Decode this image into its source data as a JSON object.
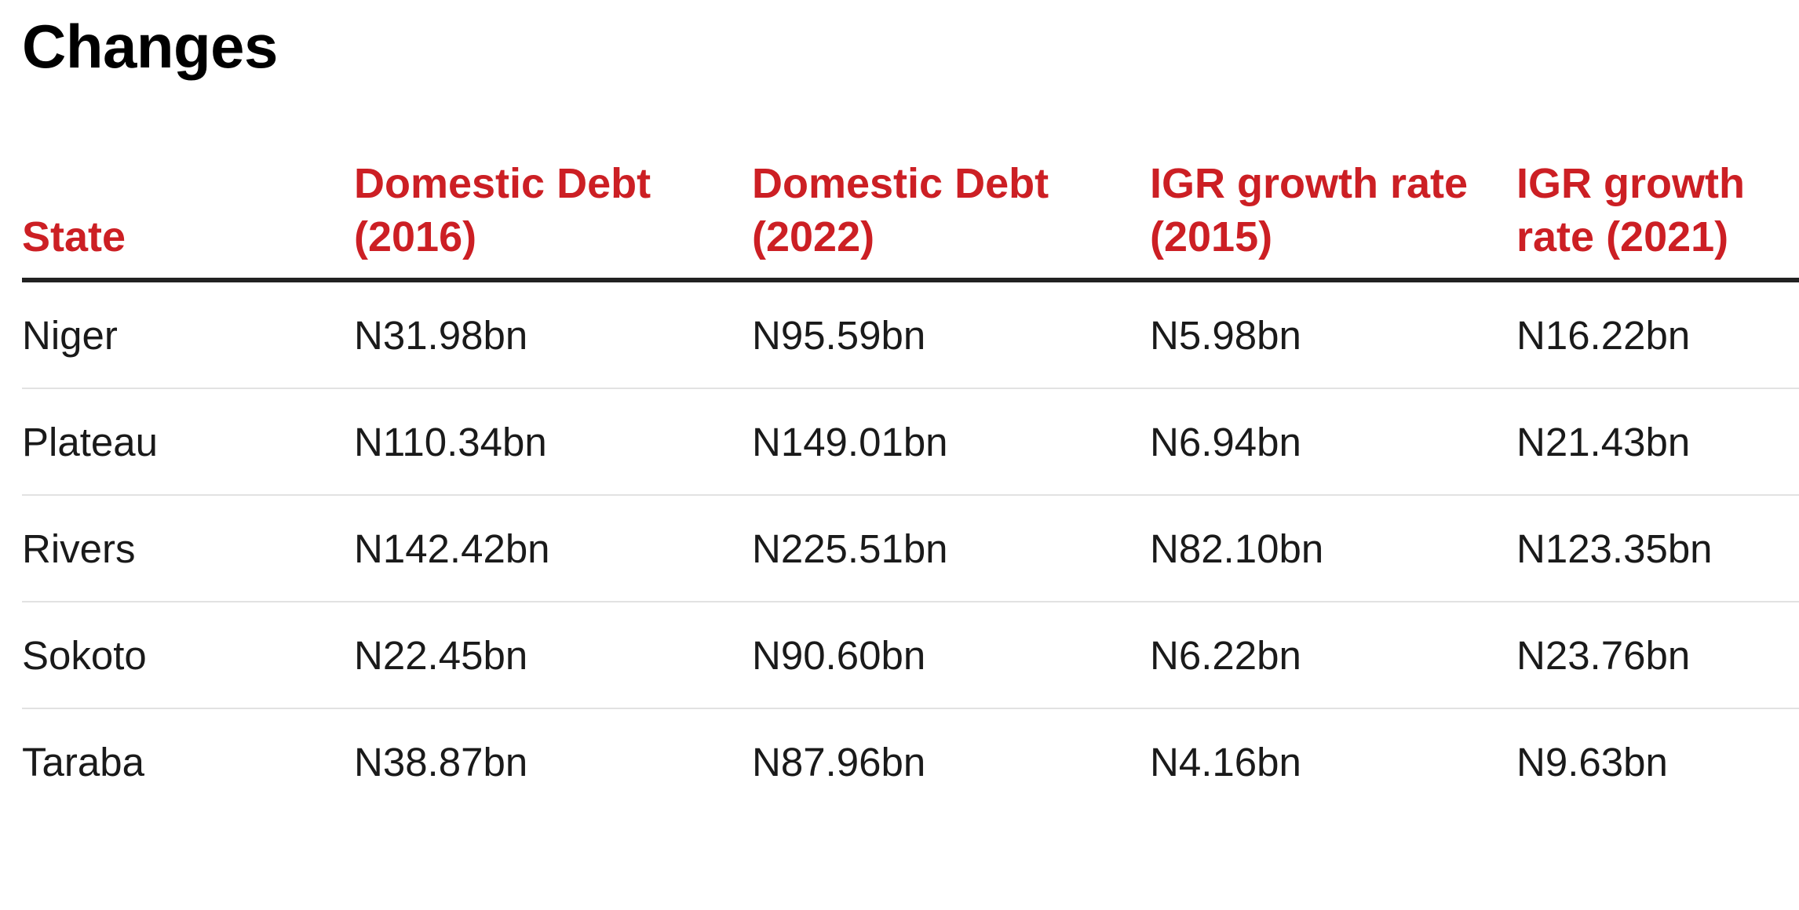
{
  "chart_data": {
    "type": "table",
    "title": "Changes",
    "columns": [
      "State",
      "Domestic Debt (2016)",
      "Domestic Debt (2022)",
      "IGR growth rate (2015)",
      "IGR growth rate (2021)"
    ],
    "rows": [
      [
        "Niger",
        "N31.98bn",
        "N95.59bn",
        "N5.98bn",
        "N16.22bn"
      ],
      [
        "Plateau",
        "N110.34bn",
        "N149.01bn",
        "N6.94bn",
        "N21.43bn"
      ],
      [
        "Rivers",
        "N142.42bn",
        "N225.51bn",
        "N82.10bn",
        "N123.35bn"
      ],
      [
        "Sokoto",
        "N22.45bn",
        "N90.60bn",
        "N6.22bn",
        "N23.76bn"
      ],
      [
        "Taraba",
        "N38.87bn",
        "N87.96bn",
        "N4.16bn",
        "N9.63bn"
      ]
    ],
    "colors": {
      "header_text": "#cc1f24",
      "header_rule": "#222222",
      "row_rule": "#e2e2e2"
    }
  }
}
